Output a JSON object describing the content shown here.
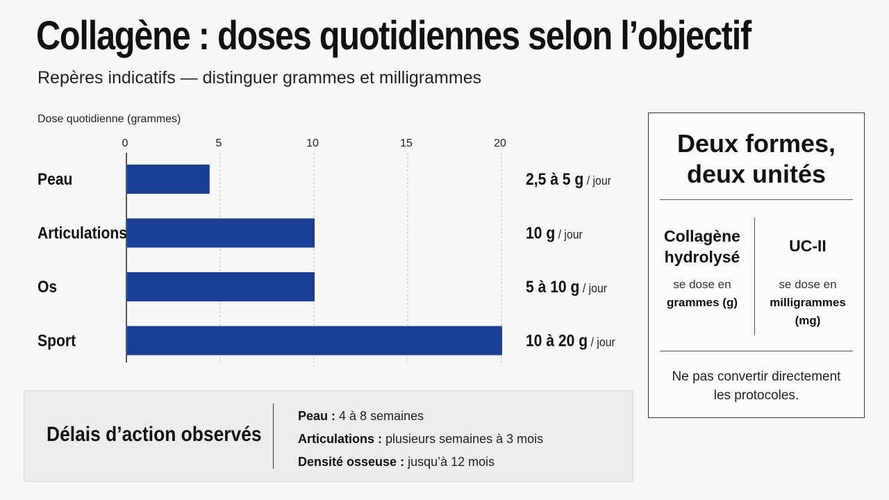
{
  "title": "Collagène : doses quotidiennes selon l’objectif",
  "subtitle": "Repères indicatifs — distinguer grammes et milligrammes",
  "chart_data": {
    "type": "bar",
    "orientation": "horizontal",
    "title": "Collagène : doses quotidiennes selon l’objectif",
    "xlabel": "Dose quotidienne (grammes)",
    "ylabel": "",
    "xlim": [
      0,
      20
    ],
    "xticks": [
      0,
      5,
      10,
      15,
      20
    ],
    "grid": true,
    "categories": [
      "Peau",
      "Articulations",
      "Os",
      "Sport"
    ],
    "values": [
      4.4,
      10,
      10,
      20
    ],
    "value_labels": [
      {
        "main": "2,5 à 5 g",
        "unit": " / jour"
      },
      {
        "main": "10 g",
        "unit": " / jour"
      },
      {
        "main": "5 à 10 g",
        "unit": " / jour"
      },
      {
        "main": "10 à 20 g",
        "unit": " / jour"
      }
    ],
    "bar_color": "#1a3e94"
  },
  "timing": {
    "title": "Délais d’action observés",
    "items": [
      {
        "label": "Peau :",
        "value": "4 à 8 semaines"
      },
      {
        "label": "Articulations :",
        "value": "plusieurs semaines à 3 mois"
      },
      {
        "label": "Densité osseuse :",
        "value": "jusqu’à 12 mois"
      }
    ]
  },
  "forms": {
    "title_line1": "Deux formes,",
    "title_line2": "deux unités",
    "left": {
      "head_line1": "Collagène",
      "head_line2": "hydrolysé",
      "text": "se dose en",
      "unit": "grammes (g)"
    },
    "right": {
      "head": "UC-II",
      "text": "se dose en",
      "unit": "milligrammes (mg)"
    },
    "note_line1": "Ne pas convertir directement",
    "note_line2": "les protocoles."
  }
}
